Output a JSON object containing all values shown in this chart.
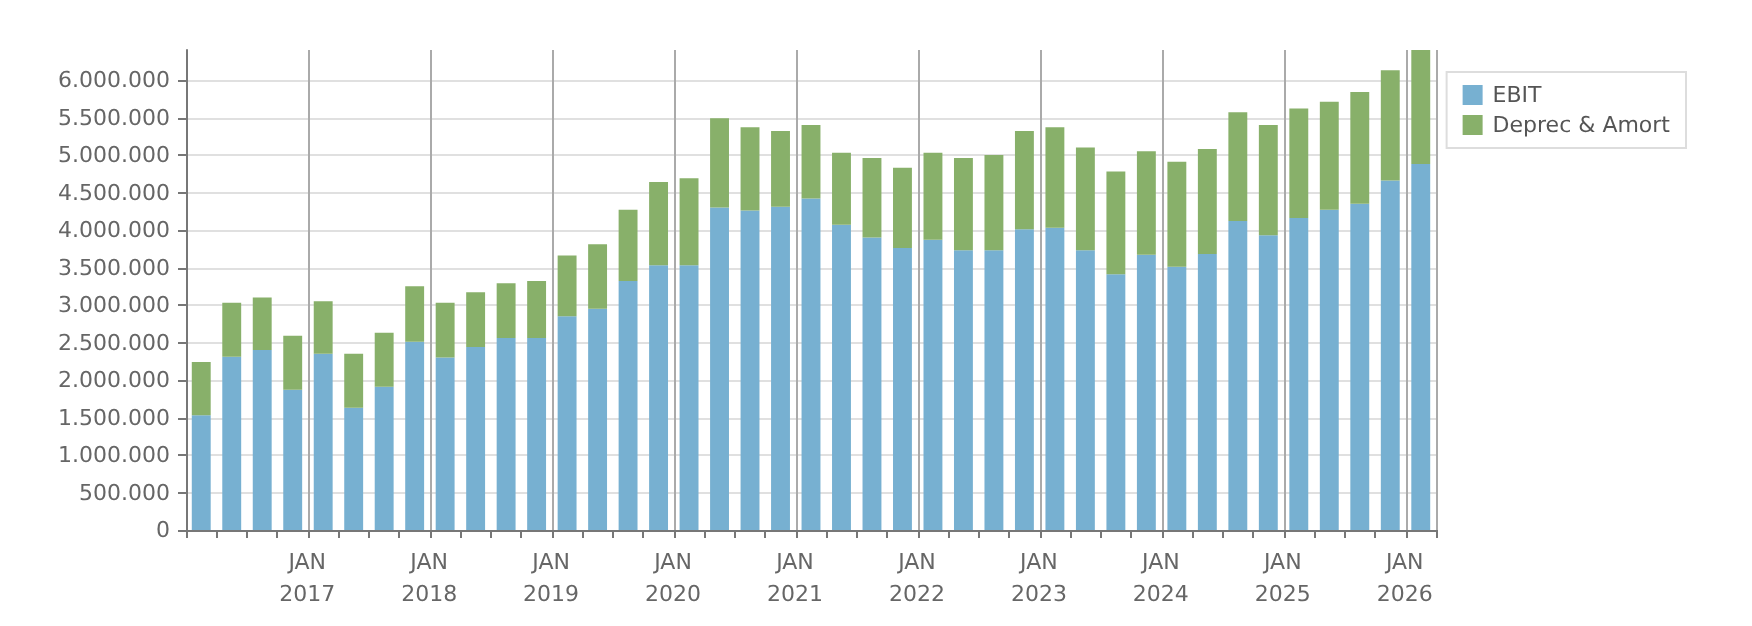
{
  "chart_data": {
    "type": "bar",
    "stacked": true,
    "categories": [
      null,
      null,
      null,
      null,
      "JAN\n2017",
      null,
      null,
      null,
      "JAN\n2018",
      null,
      null,
      null,
      "JAN\n2019",
      null,
      null,
      null,
      "JAN\n2020",
      null,
      null,
      null,
      "JAN\n2021",
      null,
      null,
      null,
      "JAN\n2022",
      null,
      null,
      null,
      "JAN\n2023",
      null,
      null,
      null,
      "JAN\n2024",
      null,
      null,
      null,
      "JAN\n2025",
      null,
      null,
      null,
      "JAN\n2026"
    ],
    "series": [
      {
        "name": "EBIT",
        "color": "#77b0d1",
        "values": [
          1530000,
          2310000,
          2400000,
          1870000,
          2350000,
          1630000,
          1910000,
          2510000,
          2300000,
          2440000,
          2560000,
          2560000,
          2850000,
          2950000,
          3320000,
          3530000,
          3530000,
          4300000,
          4260000,
          4310000,
          4420000,
          4070000,
          3900000,
          3760000,
          3870000,
          3730000,
          3730000,
          4010000,
          4030000,
          3730000,
          3410000,
          3670000,
          3510000,
          3680000,
          4120000,
          3930000,
          4160000,
          4270000,
          4350000,
          4660000,
          4880000
        ]
      },
      {
        "name": "Deprec & Amort",
        "color": "#88b06a",
        "values": [
          710000,
          720000,
          700000,
          720000,
          700000,
          720000,
          720000,
          740000,
          730000,
          730000,
          730000,
          760000,
          810000,
          860000,
          950000,
          1110000,
          1160000,
          1190000,
          1110000,
          1010000,
          980000,
          960000,
          1060000,
          1070000,
          1160000,
          1230000,
          1270000,
          1310000,
          1340000,
          1370000,
          1370000,
          1380000,
          1400000,
          1400000,
          1450000,
          1470000,
          1460000,
          1440000,
          1490000,
          1470000,
          1520000
        ]
      }
    ],
    "ylim": [
      0,
      6400000
    ],
    "yticks": [
      0,
      {
        "value": 500000,
        "label": "500.000"
      },
      {
        "value": 1000000,
        "label": "1.000.000"
      },
      {
        "value": 1500000,
        "label": "1.500.000"
      },
      {
        "value": 2000000,
        "label": "2.000.000"
      },
      {
        "value": 2500000,
        "label": "2.500.000"
      },
      {
        "value": 3000000,
        "label": "3.000.000"
      },
      {
        "value": 3500000,
        "label": "3.500.000"
      },
      {
        "value": 4000000,
        "label": "4.000.000"
      },
      {
        "value": 4500000,
        "label": "4.500.000"
      },
      {
        "value": 5000000,
        "label": "5.000.000"
      },
      {
        "value": 5500000,
        "label": "5.500.000"
      },
      {
        "value": 6000000,
        "label": "6.000.000"
      }
    ],
    "grid": true,
    "legend": "top right"
  }
}
